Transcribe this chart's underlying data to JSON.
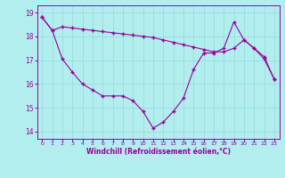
{
  "xlabel": "Windchill (Refroidissement éolien,°C)",
  "bg_color": "#b2eeee",
  "line_color": "#990099",
  "grid_color": "#99dddd",
  "ylim": [
    13.7,
    19.3
  ],
  "xlim": [
    -0.5,
    23.5
  ],
  "yticks": [
    14,
    15,
    16,
    17,
    18,
    19
  ],
  "xticks": [
    0,
    1,
    2,
    3,
    4,
    5,
    6,
    7,
    8,
    9,
    10,
    11,
    12,
    13,
    14,
    15,
    16,
    17,
    18,
    19,
    20,
    21,
    22,
    23
  ],
  "series1_x": [
    0,
    1,
    2,
    3,
    4,
    5,
    6,
    7,
    8,
    9,
    10,
    11,
    12,
    13,
    14,
    15,
    16,
    17,
    18,
    19,
    20,
    21,
    22,
    23
  ],
  "series1_y": [
    18.8,
    18.25,
    18.4,
    18.35,
    18.3,
    18.25,
    18.2,
    18.15,
    18.1,
    18.05,
    18.0,
    17.95,
    17.85,
    17.75,
    17.65,
    17.55,
    17.45,
    17.35,
    17.35,
    17.5,
    17.85,
    17.5,
    17.15,
    16.2
  ],
  "series2_x": [
    0,
    1,
    2,
    3,
    4,
    5,
    6,
    7,
    8,
    9,
    10,
    11,
    12,
    13,
    14,
    15,
    16,
    17,
    18,
    19,
    20,
    21,
    22,
    23
  ],
  "series2_y": [
    18.8,
    18.25,
    17.05,
    16.5,
    16.0,
    15.75,
    15.5,
    15.5,
    15.5,
    15.3,
    14.85,
    14.15,
    14.4,
    14.85,
    15.4,
    16.6,
    17.3,
    17.3,
    17.5,
    18.6,
    17.85,
    17.5,
    17.05,
    16.2
  ]
}
